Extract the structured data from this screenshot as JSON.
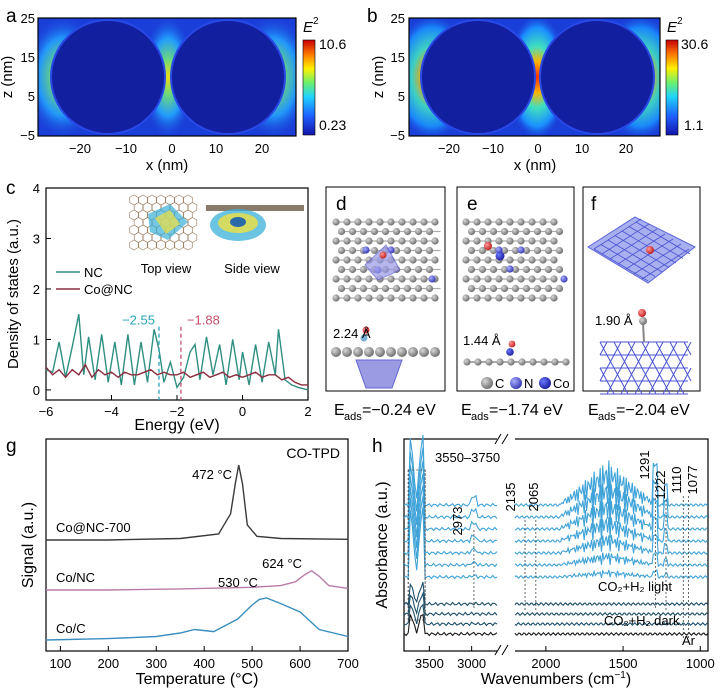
{
  "colors": {
    "nc": "#2f8f80",
    "conc": "#8b2d3f",
    "tpd_conc": "#3a3a3a",
    "tpd_co_nc": "#b87ca8",
    "tpd_co_c": "#3b8fbf",
    "ir_light": "#3fa3d8",
    "ir_dark": "#1d4f6a",
    "ir_ar": "#1a1a1a",
    "dash_nc": "#2aa4b8",
    "dash_conc": "#c0506a",
    "carbon": "#8c8c8c",
    "nitrogen": "#3b3bb8",
    "cobalt": "#2a2ac0",
    "oxygen": "#d03030"
  },
  "panels": {
    "a": {
      "letter": "a",
      "colorbar_label": "E",
      "colorbar_sup": "2",
      "cmax": "10.6",
      "cmin": "0.23"
    },
    "b": {
      "letter": "b",
      "colorbar_label": "E",
      "colorbar_sup": "2",
      "cmax": "30.6",
      "cmin": "1.1"
    },
    "c": {
      "letter": "c",
      "inset_top": "Top view",
      "inset_side": "Side view",
      "ann_nc": "−2.55",
      "ann_conc": "−1.88"
    },
    "d": {
      "letter": "d",
      "distance": "2.24 Å",
      "eads_value": "=−0.24 eV"
    },
    "e": {
      "letter": "e",
      "distance": "1.44 Å",
      "eads_value": "=−1.74 eV",
      "legend_c": "C",
      "legend_n": "N",
      "legend_co": "Co"
    },
    "f": {
      "letter": "f",
      "distance": "1.90 Å",
      "eads_value": "=−2.04 eV"
    },
    "eads_main": "E",
    "eads_sub": "ads",
    "g": {
      "letter": "g",
      "title": "CO-TPD",
      "lbl_conc": "Co@NC-700",
      "lbl_co_nc": "Co/NC",
      "lbl_co_c": "Co/C",
      "pk1": "472 °C",
      "pk2": "624 °C",
      "pk3": "530 °C"
    },
    "h": {
      "letter": "h",
      "ann_oh": "3550–3750",
      "ann_2973": "2973",
      "ann_2135": "2135",
      "ann_2065": "2065",
      "ann_1291": "1291",
      "ann_1222": "1222",
      "ann_1110": "1110",
      "ann_1077": "1077",
      "lbl_light": "CO₂+H₂ light",
      "lbl_dark": "CO₂+H₂ dark",
      "lbl_ar": "Ar"
    }
  },
  "chart_data": [
    {
      "panel": "a",
      "type": "heatmap",
      "xlabel": "x (nm)",
      "ylabel": "z (nm)",
      "xlim": [
        -27,
        27
      ],
      "ylim": [
        -5,
        25
      ],
      "xticks": [
        -20,
        -10,
        0,
        10,
        20
      ],
      "yticks": [
        -5,
        5,
        15,
        25
      ],
      "colorbar": {
        "label": "E2",
        "min": 0.23,
        "max": 10.6
      },
      "particles": [
        {
          "cx": -13,
          "cz": 10,
          "r": 12
        },
        {
          "cx": 13,
          "cz": 10,
          "r": 12
        }
      ],
      "intensity": "weak"
    },
    {
      "panel": "b",
      "type": "heatmap",
      "xlabel": "x (nm)",
      "ylabel": "z (nm)",
      "xlim": [
        -27,
        27
      ],
      "ylim": [
        -5,
        25
      ],
      "xticks": [
        -20,
        -10,
        0,
        10,
        20
      ],
      "yticks": [
        -5,
        5,
        15,
        25
      ],
      "colorbar": {
        "label": "E2",
        "min": 1.1,
        "max": 30.6
      },
      "particles": [
        {
          "cx": -13,
          "cz": 10,
          "r": 12
        },
        {
          "cx": 13,
          "cz": 10,
          "r": 12
        }
      ],
      "intensity": "strong"
    },
    {
      "panel": "c",
      "type": "line",
      "xlabel": "Energy (eV)",
      "ylabel": "Density of states (a.u.)",
      "xlim": [
        -6,
        2
      ],
      "ylim": [
        -0.2,
        4
      ],
      "xticks": [
        -6,
        -4,
        -2,
        0,
        2
      ],
      "yticks": [
        0,
        1,
        2,
        3,
        4
      ],
      "legend": "center-left",
      "series": [
        {
          "name": "NC",
          "x": [
            -6,
            -5.8,
            -5.6,
            -5.4,
            -5.2,
            -5.0,
            -4.85,
            -4.7,
            -4.5,
            -4.3,
            -4.1,
            -3.9,
            -3.7,
            -3.5,
            -3.3,
            -3.1,
            -2.9,
            -2.7,
            -2.55,
            -2.4,
            -2.2,
            -2.0,
            -1.8,
            -1.6,
            -1.45,
            -1.3,
            -1.1,
            -0.9,
            -0.7,
            -0.5,
            -0.3,
            -0.1,
            0.0,
            0.2,
            0.4,
            0.6,
            0.8,
            1.0,
            1.1,
            1.3,
            1.5,
            1.7,
            2.0
          ],
          "y": [
            0.4,
            0.35,
            0.95,
            0.25,
            0.85,
            1.5,
            0.3,
            1.05,
            0.2,
            1.1,
            0.15,
            0.95,
            0.1,
            1.1,
            0.1,
            0.95,
            0.15,
            1.2,
            0.8,
            0.15,
            0.55,
            0.05,
            0.25,
            0.75,
            0.9,
            0.2,
            1.05,
            0.3,
            0.9,
            0.1,
            1.0,
            0.2,
            0.75,
            0.1,
            0.9,
            0.15,
            0.95,
            0.3,
            1.2,
            0.2,
            0.1,
            0.05,
            0.0
          ]
        },
        {
          "name": "Co@NC",
          "x": [
            -6,
            -5.8,
            -5.6,
            -5.4,
            -5.2,
            -5.0,
            -4.8,
            -4.6,
            -4.4,
            -4.2,
            -4.0,
            -3.8,
            -3.6,
            -3.4,
            -3.2,
            -3.0,
            -2.8,
            -2.6,
            -2.4,
            -2.2,
            -2.0,
            -1.8,
            -1.6,
            -1.4,
            -1.2,
            -1.0,
            -0.8,
            -0.6,
            -0.4,
            -0.2,
            0.0,
            0.2,
            0.4,
            0.6,
            0.8,
            1.0,
            1.2,
            1.4,
            1.6,
            1.8,
            2.0
          ],
          "y": [
            0.45,
            0.3,
            0.4,
            0.25,
            0.4,
            0.3,
            0.5,
            0.25,
            0.4,
            0.3,
            0.35,
            0.25,
            0.35,
            0.3,
            0.3,
            0.35,
            0.4,
            0.3,
            0.35,
            0.3,
            0.3,
            0.35,
            0.25,
            0.3,
            0.35,
            0.25,
            0.3,
            0.35,
            0.25,
            0.3,
            0.25,
            0.3,
            0.35,
            0.25,
            0.3,
            0.3,
            0.2,
            0.25,
            0.15,
            0.1,
            0.1
          ]
        }
      ],
      "annotations": [
        {
          "x": -2.55,
          "text": "−2.55"
        },
        {
          "x": -1.88,
          "text": "−1.88"
        }
      ]
    },
    {
      "panel": "g",
      "type": "line",
      "title": "CO-TPD",
      "xlabel": "Temperature (°C)",
      "ylabel": "Signal (a.u.)",
      "xlim": [
        70,
        700
      ],
      "xticks": [
        100,
        200,
        300,
        400,
        500,
        600,
        700
      ],
      "series": [
        {
          "name": "Co@NC-700",
          "x": [
            70,
            200,
            350,
            430,
            455,
            465,
            472,
            480,
            490,
            510,
            560,
            700
          ],
          "y": [
            0,
            0,
            0.02,
            0.08,
            0.35,
            0.75,
            1.0,
            0.75,
            0.2,
            0.05,
            0.02,
            0.01
          ]
        },
        {
          "name": "Co/NC",
          "x": [
            70,
            200,
            350,
            500,
            560,
            590,
            610,
            624,
            640,
            660,
            700
          ],
          "y": [
            0,
            0,
            0.02,
            0.05,
            0.08,
            0.15,
            0.28,
            0.35,
            0.25,
            0.08,
            0.03
          ]
        },
        {
          "name": "Co/C",
          "x": [
            70,
            200,
            300,
            350,
            380,
            420,
            470,
            500,
            515,
            530,
            560,
            600,
            640,
            700
          ],
          "y": [
            0,
            0.02,
            0.05,
            0.1,
            0.15,
            0.12,
            0.3,
            0.5,
            0.58,
            0.6,
            0.52,
            0.4,
            0.15,
            0.05
          ]
        }
      ],
      "annotations": [
        {
          "x": 472,
          "text": "472 °C"
        },
        {
          "x": 624,
          "text": "624 °C"
        },
        {
          "x": 530,
          "text": "530 °C"
        }
      ]
    },
    {
      "panel": "h",
      "type": "line",
      "xlabel": "Wavenumbers (cm−1)",
      "ylabel": "Absorbance (a.u.)",
      "xticks": [
        3500,
        3000,
        2000,
        1500,
        1000
      ],
      "axis_break": [
        2200,
        2150
      ],
      "series": [
        {
          "name": "CO2+H2 light",
          "count": 7
        },
        {
          "name": "CO2+H2 dark",
          "count": 3
        },
        {
          "name": "Ar",
          "count": 1
        }
      ],
      "annotations": [
        "3550–3750",
        "2973",
        "2135",
        "2065",
        "1291",
        "1222",
        "1110",
        "1077"
      ]
    }
  ]
}
